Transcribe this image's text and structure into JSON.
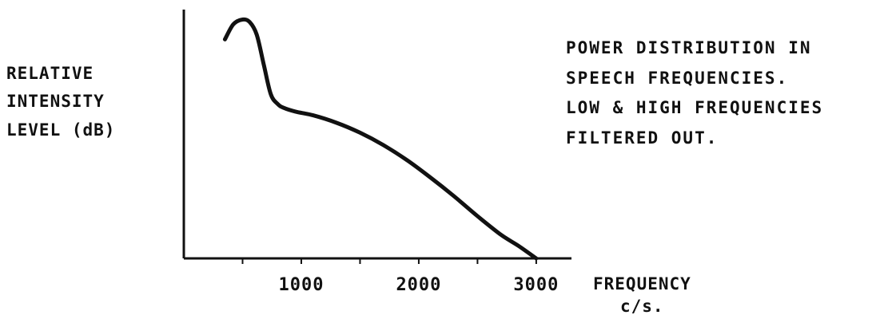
{
  "chart_data": {
    "type": "line",
    "ylabel_lines": [
      "RELATIVE",
      "INTENSITY",
      "LEVEL (dB)"
    ],
    "xlabel_lines": [
      "FREQUENCY",
      "c/s."
    ],
    "annotation_lines": [
      "POWER DISTRIBUTION IN",
      "SPEECH  FREQUENCIES.",
      "LOW & HIGH FREQUENCIES",
      "FILTERED OUT."
    ],
    "x_ticks": [
      1000,
      2000,
      3000
    ],
    "x_tick_labels": [
      "1000",
      "2000",
      "3000"
    ],
    "xlim": [
      0,
      3300
    ],
    "ylim": [
      0,
      100
    ],
    "grid": false,
    "series": [
      {
        "x": [
          350,
          420,
          500,
          560,
          620,
          680,
          740,
          800,
          850,
          950,
          1100,
          1300,
          1500,
          1700,
          1900,
          2100,
          2300,
          2500,
          2700,
          2850,
          3000
        ],
        "y": [
          88,
          94,
          96,
          95,
          90,
          78,
          66,
          62,
          60.5,
          59,
          57.5,
          54.5,
          50.5,
          45.5,
          39.5,
          32.5,
          25,
          17,
          9.5,
          5,
          0
        ]
      }
    ]
  }
}
